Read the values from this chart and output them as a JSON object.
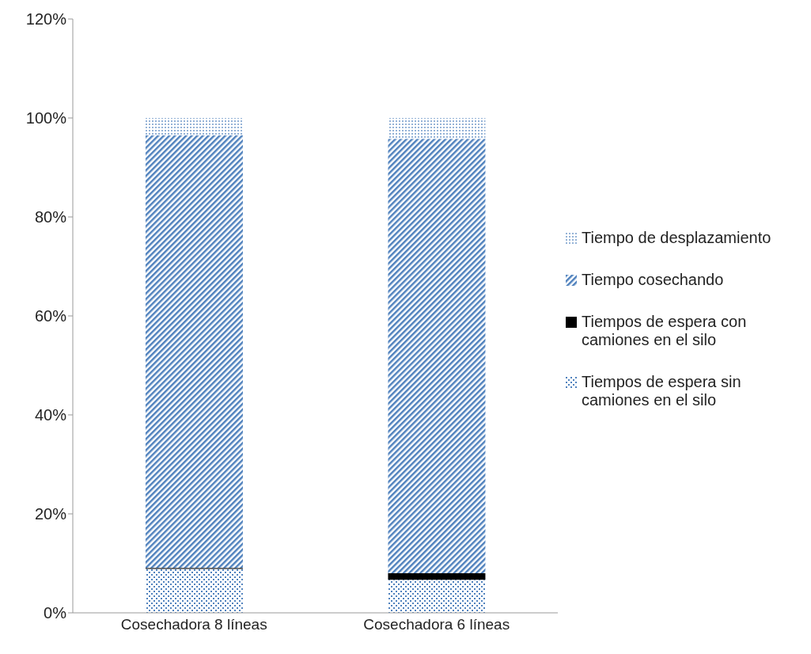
{
  "chart_data": {
    "type": "bar",
    "stacked": true,
    "categories": [
      "Cosechadora 8 líneas",
      "Cosechadora 6 líneas"
    ],
    "series": [
      {
        "name": "Tiempos de espera sin camiones en el silo",
        "color": "#4f81bd",
        "values": [
          8.9,
          6.7
        ]
      },
      {
        "name": "Tiempos de espera con camiones en el silo",
        "color": "#000000",
        "values": [
          0.2,
          1.3
        ]
      },
      {
        "name": "Tiempo cosechando",
        "color": "#4f81bd",
        "values": [
          87.4,
          87.8
        ]
      },
      {
        "name": "Tiempo de desplazamiento",
        "color": "#95b3d7",
        "values": [
          3.5,
          4.2
        ]
      }
    ],
    "ylim": [
      0,
      120
    ],
    "yticks": [
      {
        "value": 0,
        "label": "0%"
      },
      {
        "value": 20,
        "label": "20%"
      },
      {
        "value": 40,
        "label": "40%"
      },
      {
        "value": 60,
        "label": "60%"
      },
      {
        "value": 80,
        "label": "80%"
      },
      {
        "value": 100,
        "label": "100%"
      },
      {
        "value": 120,
        "label": "120%"
      }
    ],
    "grid": false,
    "legend": "right"
  }
}
